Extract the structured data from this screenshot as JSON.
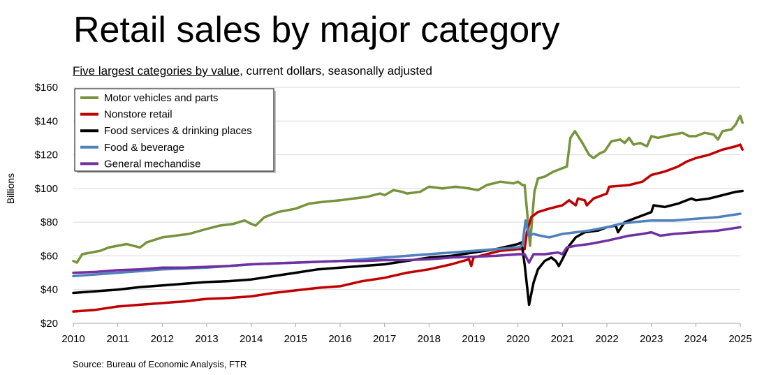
{
  "title": "Retail sales by major category",
  "subtitle_underlined": "Five largest categories by value",
  "subtitle_rest": ", current dollars, seasonally adjusted",
  "source": "Source: Bureau of Economic Analysis, FTR",
  "chart_data": {
    "type": "line",
    "ylabel": "Billions",
    "xlabel": "",
    "xlim": [
      2010,
      2025
    ],
    "ylim": [
      20,
      160
    ],
    "yticks": [
      20,
      40,
      60,
      80,
      100,
      120,
      140,
      160
    ],
    "ytick_labels": [
      "$20",
      "$40",
      "$60",
      "$80",
      "$100",
      "$120",
      "$140",
      "$160"
    ],
    "xticks": [
      2010,
      2011,
      2012,
      2013,
      2014,
      2015,
      2016,
      2017,
      2018,
      2019,
      2020,
      2021,
      2022,
      2023,
      2024,
      2025
    ],
    "xtick_labels": [
      "2010",
      "2011",
      "2012",
      "2013",
      "2014",
      "2015",
      "2016",
      "2017",
      "2018",
      "2019",
      "2020",
      "2021",
      "2022",
      "2023",
      "2024",
      "2025"
    ],
    "grid": "horizontal",
    "legend_position": "top-left",
    "series": [
      {
        "name": "Motor vehicles and parts",
        "color": "#77933c",
        "points": [
          [
            2010.0,
            57
          ],
          [
            2010.08,
            56
          ],
          [
            2010.2,
            61
          ],
          [
            2010.4,
            62
          ],
          [
            2010.6,
            63
          ],
          [
            2010.8,
            65
          ],
          [
            2011.0,
            66
          ],
          [
            2011.2,
            67
          ],
          [
            2011.35,
            66
          ],
          [
            2011.5,
            65
          ],
          [
            2011.65,
            68
          ],
          [
            2012.0,
            71
          ],
          [
            2012.3,
            72
          ],
          [
            2012.6,
            73
          ],
          [
            2013.0,
            76
          ],
          [
            2013.3,
            78
          ],
          [
            2013.6,
            79
          ],
          [
            2013.85,
            81
          ],
          [
            2014.0,
            79
          ],
          [
            2014.1,
            78
          ],
          [
            2014.3,
            83
          ],
          [
            2014.6,
            86
          ],
          [
            2015.0,
            88
          ],
          [
            2015.3,
            91
          ],
          [
            2015.6,
            92
          ],
          [
            2016.0,
            93
          ],
          [
            2016.3,
            94
          ],
          [
            2016.6,
            95
          ],
          [
            2016.9,
            97
          ],
          [
            2017.0,
            96
          ],
          [
            2017.2,
            99
          ],
          [
            2017.4,
            98
          ],
          [
            2017.5,
            97
          ],
          [
            2017.8,
            98
          ],
          [
            2018.0,
            101
          ],
          [
            2018.3,
            100
          ],
          [
            2018.6,
            101
          ],
          [
            2018.9,
            100
          ],
          [
            2019.1,
            99
          ],
          [
            2019.3,
            102
          ],
          [
            2019.6,
            104
          ],
          [
            2019.9,
            103
          ],
          [
            2020.0,
            104
          ],
          [
            2020.1,
            102
          ],
          [
            2020.15,
            102
          ],
          [
            2020.2,
            88
          ],
          [
            2020.27,
            66
          ],
          [
            2020.37,
            98
          ],
          [
            2020.45,
            106
          ],
          [
            2020.6,
            107
          ],
          [
            2020.8,
            110
          ],
          [
            2021.0,
            112
          ],
          [
            2021.1,
            113
          ],
          [
            2021.18,
            130
          ],
          [
            2021.28,
            134
          ],
          [
            2021.45,
            127
          ],
          [
            2021.6,
            120
          ],
          [
            2021.7,
            118
          ],
          [
            2021.85,
            121
          ],
          [
            2021.95,
            122
          ],
          [
            2022.1,
            128
          ],
          [
            2022.3,
            129
          ],
          [
            2022.4,
            127
          ],
          [
            2022.5,
            130
          ],
          [
            2022.6,
            126
          ],
          [
            2022.75,
            127
          ],
          [
            2022.9,
            125
          ],
          [
            2023.0,
            131
          ],
          [
            2023.15,
            130
          ],
          [
            2023.3,
            131
          ],
          [
            2023.5,
            132
          ],
          [
            2023.7,
            133
          ],
          [
            2023.85,
            131
          ],
          [
            2024.0,
            131
          ],
          [
            2024.2,
            133
          ],
          [
            2024.4,
            132
          ],
          [
            2024.5,
            129
          ],
          [
            2024.6,
            134
          ],
          [
            2024.8,
            135
          ],
          [
            2024.9,
            138
          ],
          [
            2024.97,
            142
          ],
          [
            2025.0,
            143
          ],
          [
            2025.05,
            139
          ]
        ]
      },
      {
        "name": "Nonstore retail",
        "color": "#c00000",
        "points": [
          [
            2010.0,
            27
          ],
          [
            2010.5,
            28
          ],
          [
            2011.0,
            30
          ],
          [
            2011.5,
            31
          ],
          [
            2012.0,
            32
          ],
          [
            2012.5,
            33
          ],
          [
            2013.0,
            34.5
          ],
          [
            2013.5,
            35
          ],
          [
            2014.0,
            36
          ],
          [
            2014.5,
            38
          ],
          [
            2015.0,
            39.5
          ],
          [
            2015.5,
            41
          ],
          [
            2016.0,
            42
          ],
          [
            2016.5,
            45
          ],
          [
            2017.0,
            47
          ],
          [
            2017.5,
            50
          ],
          [
            2018.0,
            52
          ],
          [
            2018.5,
            55
          ],
          [
            2018.9,
            58
          ],
          [
            2018.95,
            54
          ],
          [
            2019.0,
            59
          ],
          [
            2019.3,
            61
          ],
          [
            2019.6,
            63
          ],
          [
            2020.0,
            64
          ],
          [
            2020.15,
            64
          ],
          [
            2020.2,
            74
          ],
          [
            2020.3,
            83
          ],
          [
            2020.45,
            86
          ],
          [
            2020.7,
            88
          ],
          [
            2021.0,
            90
          ],
          [
            2021.15,
            93
          ],
          [
            2021.3,
            90
          ],
          [
            2021.35,
            94
          ],
          [
            2021.5,
            93
          ],
          [
            2021.55,
            90
          ],
          [
            2021.7,
            94
          ],
          [
            2022.0,
            97
          ],
          [
            2022.05,
            101
          ],
          [
            2022.5,
            102
          ],
          [
            2022.8,
            104
          ],
          [
            2023.0,
            108
          ],
          [
            2023.3,
            110
          ],
          [
            2023.6,
            113
          ],
          [
            2023.8,
            116
          ],
          [
            2024.0,
            118
          ],
          [
            2024.3,
            120
          ],
          [
            2024.6,
            123
          ],
          [
            2024.9,
            125
          ],
          [
            2025.0,
            126
          ],
          [
            2025.05,
            123
          ]
        ]
      },
      {
        "name": "Food services & drinking places",
        "color": "#000000",
        "points": [
          [
            2010.0,
            38
          ],
          [
            2010.5,
            39
          ],
          [
            2011.0,
            40
          ],
          [
            2011.5,
            41.5
          ],
          [
            2012.0,
            42.5
          ],
          [
            2012.5,
            43.5
          ],
          [
            2013.0,
            44.5
          ],
          [
            2013.5,
            45
          ],
          [
            2014.0,
            46
          ],
          [
            2014.5,
            48
          ],
          [
            2015.0,
            50
          ],
          [
            2015.5,
            52
          ],
          [
            2016.0,
            53
          ],
          [
            2016.5,
            54
          ],
          [
            2017.0,
            55
          ],
          [
            2017.5,
            57
          ],
          [
            2018.0,
            59
          ],
          [
            2018.5,
            60
          ],
          [
            2019.0,
            62
          ],
          [
            2019.5,
            64
          ],
          [
            2020.0,
            67
          ],
          [
            2020.08,
            68
          ],
          [
            2020.15,
            55
          ],
          [
            2020.25,
            31
          ],
          [
            2020.35,
            44
          ],
          [
            2020.45,
            52
          ],
          [
            2020.6,
            57
          ],
          [
            2020.75,
            59
          ],
          [
            2020.85,
            57
          ],
          [
            2020.92,
            54
          ],
          [
            2021.0,
            58
          ],
          [
            2021.15,
            66
          ],
          [
            2021.3,
            71
          ],
          [
            2021.5,
            74
          ],
          [
            2021.8,
            75
          ],
          [
            2022.0,
            77
          ],
          [
            2022.2,
            78
          ],
          [
            2022.25,
            74
          ],
          [
            2022.4,
            80
          ],
          [
            2022.7,
            83
          ],
          [
            2022.9,
            85
          ],
          [
            2023.0,
            86
          ],
          [
            2023.05,
            90
          ],
          [
            2023.3,
            89
          ],
          [
            2023.6,
            91
          ],
          [
            2023.9,
            94
          ],
          [
            2024.0,
            93
          ],
          [
            2024.3,
            94
          ],
          [
            2024.6,
            96
          ],
          [
            2024.9,
            98
          ],
          [
            2025.05,
            98.5
          ]
        ]
      },
      {
        "name": "Food & beverage",
        "color": "#4f81bd",
        "points": [
          [
            2010.0,
            48
          ],
          [
            2010.5,
            49
          ],
          [
            2011.0,
            50
          ],
          [
            2011.5,
            51
          ],
          [
            2012.0,
            52
          ],
          [
            2012.5,
            52.5
          ],
          [
            2013.0,
            53
          ],
          [
            2013.5,
            54
          ],
          [
            2014.0,
            55
          ],
          [
            2014.5,
            55.5
          ],
          [
            2015.0,
            56
          ],
          [
            2015.5,
            56.5
          ],
          [
            2016.0,
            57
          ],
          [
            2016.5,
            58
          ],
          [
            2017.0,
            59
          ],
          [
            2017.5,
            60
          ],
          [
            2018.0,
            61
          ],
          [
            2018.5,
            62
          ],
          [
            2019.0,
            63
          ],
          [
            2019.5,
            64
          ],
          [
            2020.0,
            65
          ],
          [
            2020.1,
            66
          ],
          [
            2020.17,
            81
          ],
          [
            2020.25,
            72
          ],
          [
            2020.35,
            73
          ],
          [
            2020.5,
            72
          ],
          [
            2020.7,
            71
          ],
          [
            2021.0,
            73
          ],
          [
            2021.3,
            74
          ],
          [
            2021.6,
            75
          ],
          [
            2022.0,
            77
          ],
          [
            2022.3,
            79
          ],
          [
            2022.6,
            80
          ],
          [
            2023.0,
            81
          ],
          [
            2023.5,
            81
          ],
          [
            2024.0,
            82
          ],
          [
            2024.5,
            83
          ],
          [
            2025.0,
            85
          ]
        ]
      },
      {
        "name": "General mechandise",
        "color": "#7030a0",
        "points": [
          [
            2010.0,
            50
          ],
          [
            2010.5,
            50.5
          ],
          [
            2011.0,
            51.5
          ],
          [
            2011.5,
            52
          ],
          [
            2012.0,
            53
          ],
          [
            2012.5,
            53
          ],
          [
            2013.0,
            53.5
          ],
          [
            2013.5,
            54
          ],
          [
            2014.0,
            55
          ],
          [
            2014.5,
            55.5
          ],
          [
            2015.0,
            56
          ],
          [
            2015.5,
            56.5
          ],
          [
            2016.0,
            57
          ],
          [
            2016.5,
            57
          ],
          [
            2017.0,
            57.5
          ],
          [
            2017.5,
            57.5
          ],
          [
            2018.0,
            58
          ],
          [
            2018.5,
            59
          ],
          [
            2019.0,
            59.5
          ],
          [
            2019.5,
            60
          ],
          [
            2020.0,
            61
          ],
          [
            2020.15,
            61
          ],
          [
            2020.25,
            56
          ],
          [
            2020.35,
            61
          ],
          [
            2020.6,
            61
          ],
          [
            2020.9,
            62
          ],
          [
            2021.0,
            61
          ],
          [
            2021.1,
            65
          ],
          [
            2021.3,
            66
          ],
          [
            2021.6,
            67
          ],
          [
            2022.0,
            69
          ],
          [
            2022.5,
            72
          ],
          [
            2022.8,
            73
          ],
          [
            2023.0,
            74
          ],
          [
            2023.2,
            72
          ],
          [
            2023.5,
            73
          ],
          [
            2024.0,
            74
          ],
          [
            2024.5,
            75
          ],
          [
            2025.0,
            77
          ]
        ]
      }
    ]
  }
}
